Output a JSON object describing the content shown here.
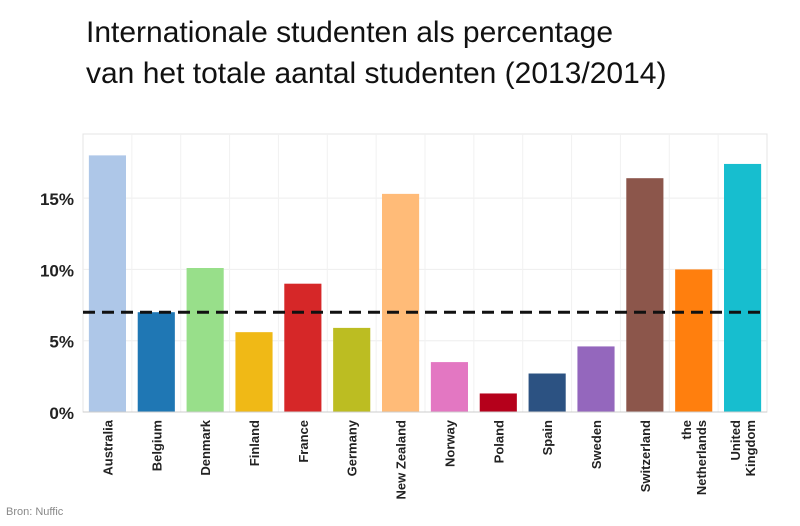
{
  "title_line1": "Internationale studenten als percentage",
  "title_line2": "van het totale aantal studenten (2013/2014)",
  "source": "Bron: Nuffic",
  "chart_data": {
    "type": "bar",
    "categories": [
      "Australia",
      "Belgium",
      "Denmark",
      "Finland",
      "France",
      "Germany",
      "New Zealand",
      "Norway",
      "Poland",
      "Spain",
      "Sweden",
      "Switzerland",
      "the Netherlands",
      "United Kingdom"
    ],
    "category_lines": [
      [
        "Australia"
      ],
      [
        "Belgium"
      ],
      [
        "Denmark"
      ],
      [
        "Finland"
      ],
      [
        "France"
      ],
      [
        "Germany"
      ],
      [
        "New Zealand"
      ],
      [
        "Norway"
      ],
      [
        "Poland"
      ],
      [
        "Spain"
      ],
      [
        "Sweden"
      ],
      [
        "Switzerland"
      ],
      [
        "the",
        "Netherlands"
      ],
      [
        "United",
        "Kingdom"
      ]
    ],
    "values": [
      18.0,
      7.0,
      10.1,
      5.6,
      9.0,
      5.9,
      15.3,
      3.5,
      1.3,
      2.7,
      4.6,
      16.4,
      10.0,
      17.4
    ],
    "colors": [
      "#aec7e8",
      "#1f77b4",
      "#98df8a",
      "#f0b916",
      "#d62728",
      "#bcbd22",
      "#ffbb78",
      "#e377c2",
      "#b5001b",
      "#2c5282",
      "#9467bd",
      "#8c564b",
      "#ff7f0e",
      "#17becf"
    ],
    "reference_line": 7.0,
    "ylim": [
      0,
      19.5
    ],
    "yticks": [
      0,
      5,
      10,
      15
    ],
    "ytick_labels": [
      "0%",
      "5%",
      "10%",
      "15%"
    ],
    "xlabel": "",
    "ylabel": "",
    "grid": true
  }
}
